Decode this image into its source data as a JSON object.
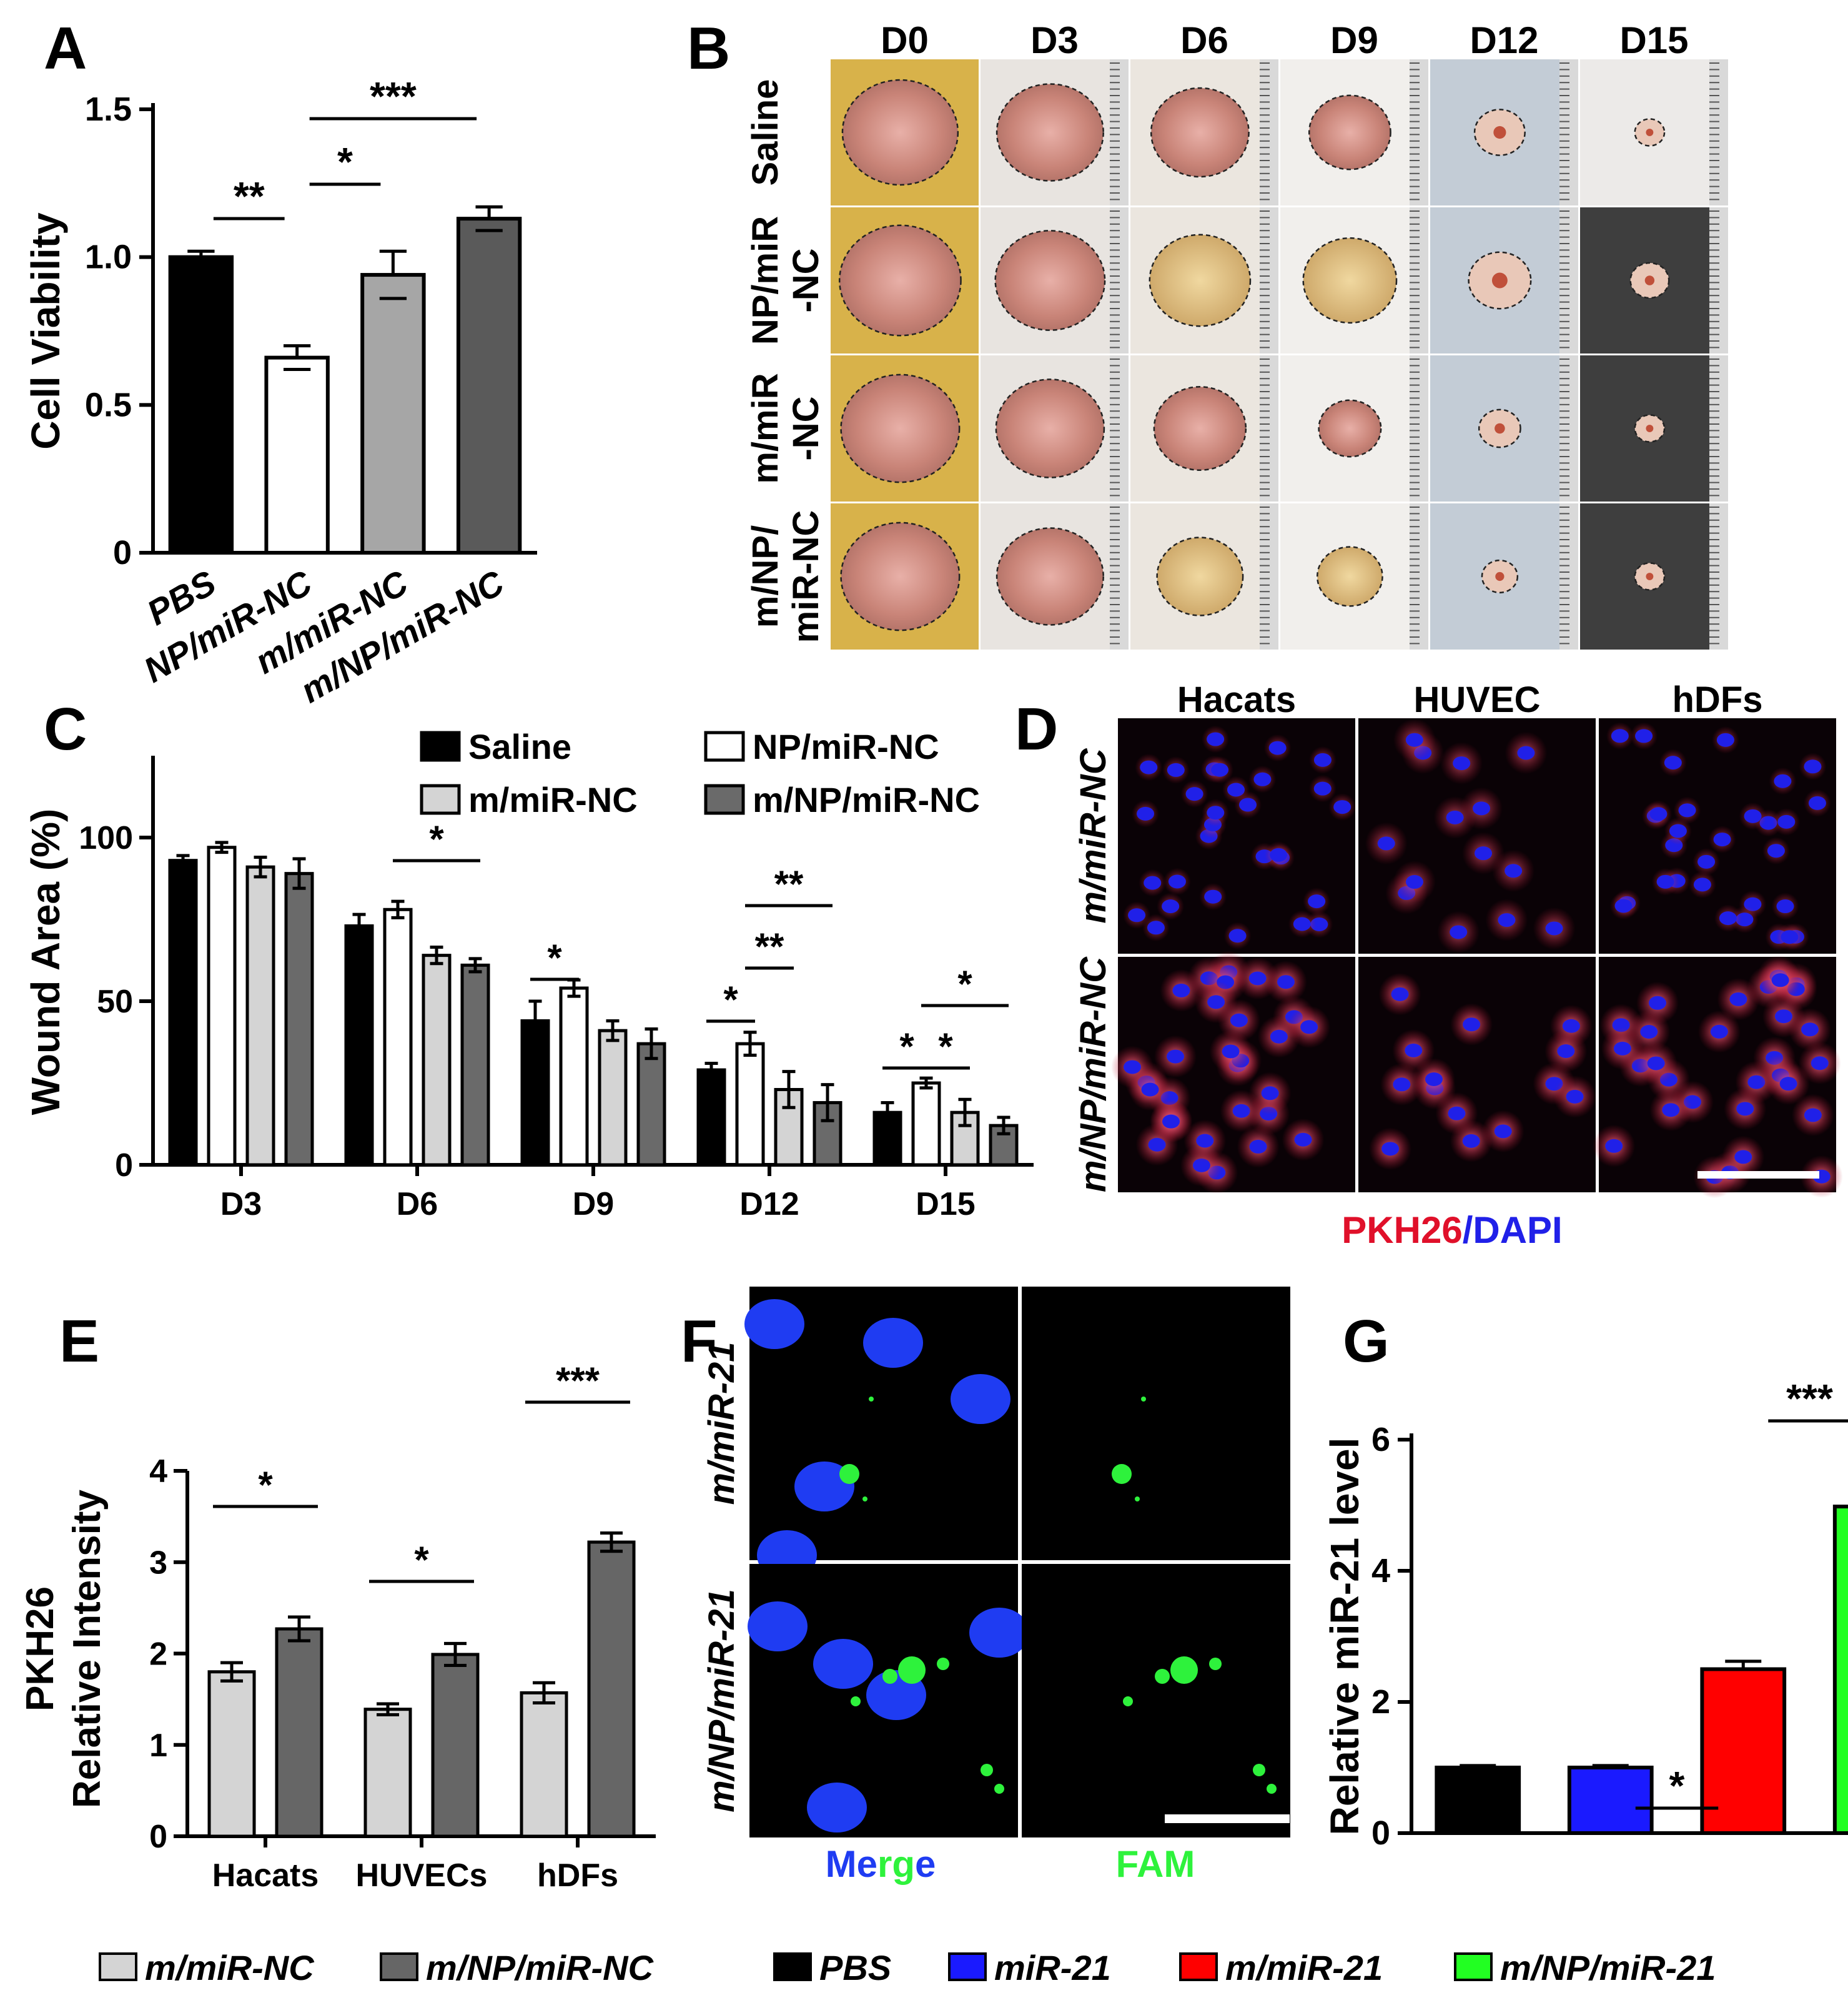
{
  "panels": {
    "A": {
      "letter": "A",
      "chart_data": {
        "type": "bar",
        "ylabel": "Cell Viability",
        "ylim": [
          0,
          1.5
        ],
        "yticks": [
          0,
          0.5,
          1.0,
          1.5
        ],
        "ytick_labels": [
          "0",
          "0.5",
          "1.0",
          "1.5"
        ],
        "categories": [
          "PBS",
          "NP/miR-NC",
          "m/miR-NC",
          "m/NP/miR-NC"
        ],
        "values": [
          1.0,
          0.66,
          0.94,
          1.13
        ],
        "errors": [
          0.02,
          0.04,
          0.08,
          0.04
        ],
        "colors": [
          "#000000",
          "#ffffff",
          "#a6a6a6",
          "#5a5a5a"
        ],
        "significance": [
          {
            "from": 0,
            "to": 1,
            "label": "**"
          },
          {
            "from": 1,
            "to": 2,
            "label": "*"
          },
          {
            "from": 1,
            "to": 3,
            "label": "***"
          }
        ]
      }
    },
    "B": {
      "letter": "B",
      "days": [
        "D0",
        "D3",
        "D6",
        "D9",
        "D12",
        "D15"
      ],
      "groups": [
        {
          "line1": "Saline",
          "line2": ""
        },
        {
          "line1": "NP/miR",
          "line2": "-NC"
        },
        {
          "line1": "m/miR",
          "line2": "-NC"
        },
        {
          "line1": "m/NP/",
          "line2": "miR-NC"
        }
      ]
    },
    "C": {
      "letter": "C",
      "chart_data": {
        "type": "bar",
        "ylabel": "Wound Area (%)",
        "ylim": [
          0,
          125
        ],
        "yticks": [
          0,
          50,
          100
        ],
        "ytick_labels": [
          "0",
          "50",
          "100"
        ],
        "categories": [
          "D3",
          "D6",
          "D9",
          "D12",
          "D15"
        ],
        "series": [
          {
            "name": "Saline",
            "color": "#000000",
            "values": [
              93,
              73,
              44,
              29,
              16
            ],
            "errors": [
              1.5,
              3.5,
              6,
              2,
              3
            ]
          },
          {
            "name": "NP/miR-NC",
            "color": "#ffffff",
            "values": [
              97,
              78,
              54,
              37,
              25
            ],
            "errors": [
              1.5,
              2.5,
              2.5,
              3.5,
              1.5
            ]
          },
          {
            "name": "m/miR-NC",
            "color": "#d4d4d4",
            "values": [
              91,
              64,
              41,
              23,
              16
            ],
            "errors": [
              3,
              2.5,
              3,
              5.5,
              4
            ]
          },
          {
            "name": "m/NP/miR-NC",
            "color": "#6a6a6a",
            "values": [
              89,
              61,
              37,
              19,
              12
            ],
            "errors": [
              4.5,
              2,
              4.5,
              5.5,
              2.5
            ]
          }
        ],
        "significance": [
          {
            "group": 1,
            "from": 1,
            "to": 3,
            "label": "*"
          },
          {
            "group": 2,
            "from": 0,
            "to": 1,
            "label": "*"
          },
          {
            "group": 3,
            "from": 0,
            "to": 1,
            "label": "*"
          },
          {
            "group": 3,
            "from": 1,
            "to": 2,
            "label": "**"
          },
          {
            "group": 3,
            "from": 1,
            "to": 3,
            "label": "**"
          },
          {
            "group": 4,
            "from": 0,
            "to": 1,
            "label": "*"
          },
          {
            "group": 4,
            "from": 1,
            "to": 2,
            "label": "*"
          },
          {
            "group": 4,
            "from": 1,
            "to": 3,
            "label": "*"
          }
        ]
      }
    },
    "D": {
      "letter": "D",
      "columns": [
        "Hacats",
        "HUVEC",
        "hDFs"
      ],
      "rows": [
        "m/miR-NC",
        "m/NP/miR-NC"
      ],
      "caption_red": "PKH26",
      "caption_sep": "/",
      "caption_blue": "DAPI",
      "colors": {
        "membrane": "#e0102a",
        "nucleus": "#2020e8"
      }
    },
    "E": {
      "letter": "E",
      "chart_data": {
        "type": "bar",
        "ylabel_line1": "PKH26",
        "ylabel_line2": "Relative Intensity",
        "ylim": [
          0,
          4
        ],
        "yticks": [
          0,
          1,
          2,
          3,
          4
        ],
        "ytick_labels": [
          "0",
          "1",
          "2",
          "3",
          "4"
        ],
        "categories": [
          "Hacats",
          "HUVECs",
          "hDFs"
        ],
        "series": [
          {
            "name": "m/miR-NC",
            "color": "#d4d4d4",
            "values": [
              1.8,
              1.39,
              1.57
            ],
            "errors": [
              0.1,
              0.06,
              0.11
            ]
          },
          {
            "name": "m/NP/miR-NC",
            "color": "#666666",
            "values": [
              2.27,
              1.99,
              3.22
            ],
            "errors": [
              0.13,
              0.12,
              0.1
            ]
          }
        ],
        "significance": [
          {
            "group": 0,
            "label": "*"
          },
          {
            "group": 1,
            "label": "*"
          },
          {
            "group": 2,
            "label": "***"
          }
        ]
      }
    },
    "F": {
      "letter": "F",
      "rows": [
        "m/miR-21",
        "m/NP/miR-21"
      ],
      "col_merge_blue": "Me",
      "col_merge_green": "rg",
      "col_merge_blue2": "e",
      "col_fam": "FAM",
      "colors": {
        "nucleus": "#1f3cf2",
        "fam": "#2ef23c"
      }
    },
    "G": {
      "letter": "G",
      "chart_data": {
        "type": "bar",
        "ylabel": "Relative miR-21 level",
        "ylim": [
          0,
          6
        ],
        "yticks": [
          0,
          2,
          4,
          6
        ],
        "ytick_labels": [
          "0",
          "2",
          "4",
          "6"
        ],
        "categories": [
          "PBS",
          "miR-21",
          "m/miR-21",
          "m/NP/miR-21"
        ],
        "values": [
          1.0,
          1.0,
          2.5,
          4.98
        ],
        "errors": [
          0.03,
          0.03,
          0.12,
          0.5
        ],
        "colors": [
          "#000000",
          "#1a1aff",
          "#ff0000",
          "#22ff22"
        ],
        "significance": [
          {
            "from": 1,
            "to": 2,
            "label": "*"
          },
          {
            "from": 2,
            "to": 3,
            "label": "***"
          }
        ]
      }
    }
  },
  "legend_E": [
    {
      "label": "m/miR-NC",
      "color": "#d4d4d4"
    },
    {
      "label": "m/NP/miR-NC",
      "color": "#666666"
    }
  ],
  "legend_G": [
    {
      "label": "PBS",
      "color": "#000000"
    },
    {
      "label": "miR-21",
      "color": "#1a1aff"
    },
    {
      "label": "m/miR-21",
      "color": "#ff0000"
    },
    {
      "label": "m/NP/miR-21",
      "color": "#22ff22"
    }
  ]
}
